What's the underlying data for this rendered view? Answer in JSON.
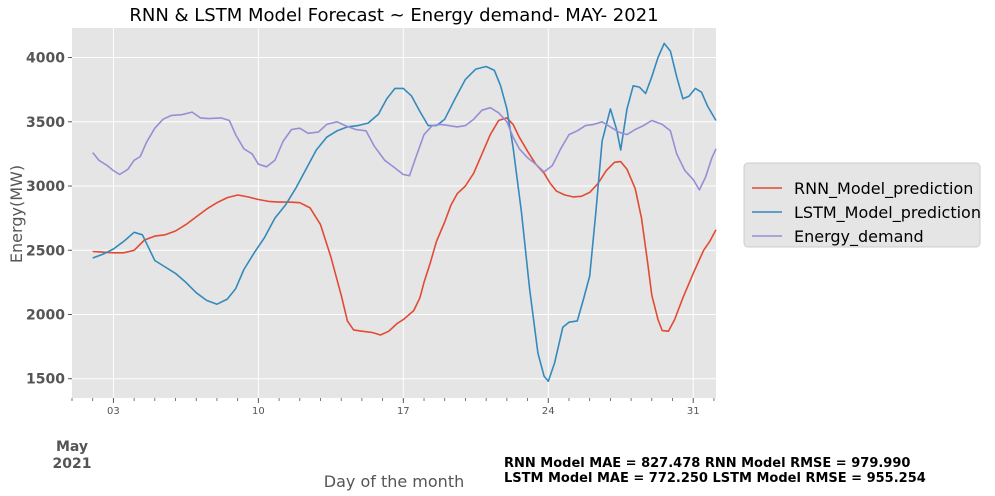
{
  "chart_data": {
    "type": "line",
    "title": "RNN & LSTM Model Forecast ~ Energy demand- MAY- 2021",
    "xlabel": "Day of the month",
    "ylabel": "Energy(MW)",
    "x_month_label": [
      "May",
      "2021"
    ],
    "x_ticks": [
      {
        "day": 3,
        "label": "03"
      },
      {
        "day": 10,
        "label": "10"
      },
      {
        "day": 17,
        "label": "17"
      },
      {
        "day": 24,
        "label": "24"
      },
      {
        "day": 31,
        "label": "31"
      }
    ],
    "y_ticks": [
      1500,
      2000,
      2500,
      3000,
      3500,
      4000
    ],
    "xlim": [
      1,
      32.1
    ],
    "ylim": [
      1350,
      4230
    ],
    "grid": true,
    "legend_position": "right",
    "colors": {
      "background": "#e5e5e5",
      "grid": "#ffffff"
    },
    "series": [
      {
        "name": "RNN_Model_prediction",
        "color": "#e24a33",
        "points": [
          [
            2,
            2490
          ],
          [
            2.5,
            2485
          ],
          [
            3,
            2480
          ],
          [
            3.5,
            2480
          ],
          [
            4,
            2500
          ],
          [
            4.5,
            2580
          ],
          [
            5,
            2610
          ],
          [
            5.5,
            2620
          ],
          [
            6,
            2650
          ],
          [
            6.5,
            2700
          ],
          [
            7,
            2760
          ],
          [
            7.5,
            2820
          ],
          [
            8,
            2870
          ],
          [
            8.5,
            2910
          ],
          [
            9,
            2930
          ],
          [
            9.5,
            2915
          ],
          [
            10,
            2895
          ],
          [
            10.5,
            2880
          ],
          [
            11,
            2875
          ],
          [
            11.5,
            2875
          ],
          [
            12,
            2870
          ],
          [
            12.5,
            2830
          ],
          [
            13,
            2700
          ],
          [
            13.5,
            2450
          ],
          [
            14,
            2150
          ],
          [
            14.3,
            1950
          ],
          [
            14.6,
            1880
          ],
          [
            15,
            1870
          ],
          [
            15.5,
            1860
          ],
          [
            15.9,
            1840
          ],
          [
            16.3,
            1870
          ],
          [
            16.7,
            1930
          ],
          [
            17,
            1960
          ],
          [
            17.5,
            2030
          ],
          [
            17.8,
            2130
          ],
          [
            18,
            2250
          ],
          [
            18.3,
            2400
          ],
          [
            18.6,
            2570
          ],
          [
            19,
            2720
          ],
          [
            19.3,
            2850
          ],
          [
            19.6,
            2940
          ],
          [
            20,
            3000
          ],
          [
            20.4,
            3100
          ],
          [
            20.8,
            3250
          ],
          [
            21.2,
            3400
          ],
          [
            21.6,
            3510
          ],
          [
            22,
            3530
          ],
          [
            22.3,
            3480
          ],
          [
            22.6,
            3380
          ],
          [
            23,
            3270
          ],
          [
            23.4,
            3170
          ],
          [
            23.8,
            3100
          ],
          [
            24.1,
            3020
          ],
          [
            24.4,
            2960
          ],
          [
            24.8,
            2930
          ],
          [
            25.2,
            2915
          ],
          [
            25.6,
            2920
          ],
          [
            26,
            2950
          ],
          [
            26.4,
            3020
          ],
          [
            26.8,
            3120
          ],
          [
            27.2,
            3185
          ],
          [
            27.5,
            3190
          ],
          [
            27.8,
            3130
          ],
          [
            28.2,
            2980
          ],
          [
            28.5,
            2750
          ],
          [
            28.8,
            2400
          ],
          [
            29,
            2150
          ],
          [
            29.3,
            1960
          ],
          [
            29.5,
            1875
          ],
          [
            29.8,
            1870
          ],
          [
            30.1,
            1960
          ],
          [
            30.5,
            2130
          ],
          [
            31,
            2320
          ],
          [
            31.5,
            2500
          ],
          [
            31.8,
            2570
          ],
          [
            32.1,
            2660
          ]
        ]
      },
      {
        "name": "LSTM_Model_prediction",
        "color": "#348abd",
        "points": [
          [
            2,
            2440
          ],
          [
            2.5,
            2470
          ],
          [
            3,
            2510
          ],
          [
            3.5,
            2570
          ],
          [
            4,
            2640
          ],
          [
            4.4,
            2620
          ],
          [
            4.7,
            2520
          ],
          [
            5,
            2420
          ],
          [
            5.5,
            2370
          ],
          [
            6,
            2320
          ],
          [
            6.5,
            2250
          ],
          [
            7,
            2170
          ],
          [
            7.5,
            2110
          ],
          [
            8,
            2080
          ],
          [
            8.5,
            2120
          ],
          [
            8.9,
            2200
          ],
          [
            9.3,
            2350
          ],
          [
            9.8,
            2480
          ],
          [
            10.3,
            2600
          ],
          [
            10.8,
            2750
          ],
          [
            11.3,
            2850
          ],
          [
            11.8,
            2980
          ],
          [
            12.3,
            3130
          ],
          [
            12.8,
            3280
          ],
          [
            13.3,
            3380
          ],
          [
            13.8,
            3430
          ],
          [
            14.3,
            3460
          ],
          [
            14.8,
            3470
          ],
          [
            15.3,
            3490
          ],
          [
            15.8,
            3560
          ],
          [
            16.2,
            3680
          ],
          [
            16.6,
            3760
          ],
          [
            17,
            3760
          ],
          [
            17.4,
            3700
          ],
          [
            17.8,
            3580
          ],
          [
            18.2,
            3470
          ],
          [
            18.6,
            3470
          ],
          [
            19,
            3520
          ],
          [
            19.5,
            3680
          ],
          [
            20,
            3830
          ],
          [
            20.5,
            3910
          ],
          [
            21,
            3930
          ],
          [
            21.4,
            3900
          ],
          [
            21.7,
            3780
          ],
          [
            22,
            3600
          ],
          [
            22.3,
            3300
          ],
          [
            22.7,
            2800
          ],
          [
            23.1,
            2200
          ],
          [
            23.5,
            1700
          ],
          [
            23.8,
            1520
          ],
          [
            24,
            1480
          ],
          [
            24.3,
            1620
          ],
          [
            24.7,
            1900
          ],
          [
            25,
            1940
          ],
          [
            25.4,
            1950
          ],
          [
            25.7,
            2120
          ],
          [
            26,
            2300
          ],
          [
            26.3,
            2800
          ],
          [
            26.6,
            3350
          ],
          [
            27,
            3600
          ],
          [
            27.3,
            3440
          ],
          [
            27.5,
            3280
          ],
          [
            27.8,
            3600
          ],
          [
            28.1,
            3780
          ],
          [
            28.4,
            3770
          ],
          [
            28.7,
            3720
          ],
          [
            29,
            3850
          ],
          [
            29.3,
            4000
          ],
          [
            29.6,
            4110
          ],
          [
            29.9,
            4050
          ],
          [
            30.2,
            3850
          ],
          [
            30.5,
            3680
          ],
          [
            30.8,
            3700
          ],
          [
            31.1,
            3760
          ],
          [
            31.4,
            3730
          ],
          [
            31.7,
            3620
          ],
          [
            32.1,
            3510
          ]
        ]
      },
      {
        "name": "Energy_demand",
        "color": "#988ed5",
        "points": [
          [
            2,
            3260
          ],
          [
            2.3,
            3200
          ],
          [
            2.7,
            3160
          ],
          [
            3,
            3120
          ],
          [
            3.3,
            3090
          ],
          [
            3.7,
            3130
          ],
          [
            4,
            3200
          ],
          [
            4.3,
            3230
          ],
          [
            4.6,
            3340
          ],
          [
            5,
            3450
          ],
          [
            5.4,
            3520
          ],
          [
            5.8,
            3550
          ],
          [
            6.3,
            3555
          ],
          [
            6.8,
            3575
          ],
          [
            7.2,
            3530
          ],
          [
            7.6,
            3525
          ],
          [
            8.2,
            3530
          ],
          [
            8.6,
            3510
          ],
          [
            8.9,
            3400
          ],
          [
            9.3,
            3290
          ],
          [
            9.7,
            3250
          ],
          [
            10,
            3170
          ],
          [
            10.4,
            3150
          ],
          [
            10.8,
            3200
          ],
          [
            11.2,
            3350
          ],
          [
            11.6,
            3440
          ],
          [
            12,
            3450
          ],
          [
            12.4,
            3410
          ],
          [
            12.9,
            3420
          ],
          [
            13.3,
            3480
          ],
          [
            13.8,
            3500
          ],
          [
            14.2,
            3470
          ],
          [
            14.7,
            3440
          ],
          [
            15.2,
            3430
          ],
          [
            15.6,
            3310
          ],
          [
            16.1,
            3200
          ],
          [
            16.6,
            3140
          ],
          [
            17,
            3090
          ],
          [
            17.3,
            3080
          ],
          [
            17.6,
            3220
          ],
          [
            18,
            3400
          ],
          [
            18.4,
            3470
          ],
          [
            18.8,
            3480
          ],
          [
            19.2,
            3470
          ],
          [
            19.6,
            3460
          ],
          [
            20,
            3470
          ],
          [
            20.4,
            3520
          ],
          [
            20.8,
            3590
          ],
          [
            21.2,
            3610
          ],
          [
            21.6,
            3570
          ],
          [
            22,
            3500
          ],
          [
            22.3,
            3380
          ],
          [
            22.6,
            3290
          ],
          [
            23,
            3220
          ],
          [
            23.4,
            3170
          ],
          [
            23.8,
            3110
          ],
          [
            24.2,
            3160
          ],
          [
            24.6,
            3290
          ],
          [
            25,
            3400
          ],
          [
            25.4,
            3430
          ],
          [
            25.8,
            3470
          ],
          [
            26.2,
            3480
          ],
          [
            26.6,
            3500
          ],
          [
            27,
            3460
          ],
          [
            27.4,
            3420
          ],
          [
            27.8,
            3400
          ],
          [
            28.2,
            3440
          ],
          [
            28.6,
            3470
          ],
          [
            29,
            3510
          ],
          [
            29.5,
            3480
          ],
          [
            29.9,
            3430
          ],
          [
            30.2,
            3250
          ],
          [
            30.6,
            3120
          ],
          [
            31,
            3050
          ],
          [
            31.3,
            2970
          ],
          [
            31.6,
            3070
          ],
          [
            31.9,
            3220
          ],
          [
            32.1,
            3290
          ]
        ]
      }
    ],
    "annotations": [
      "RNN Model MAE = 827.478 RNN Model RMSE = 979.990",
      "LSTM Model MAE = 772.250 LSTM Model RMSE = 955.254"
    ]
  }
}
